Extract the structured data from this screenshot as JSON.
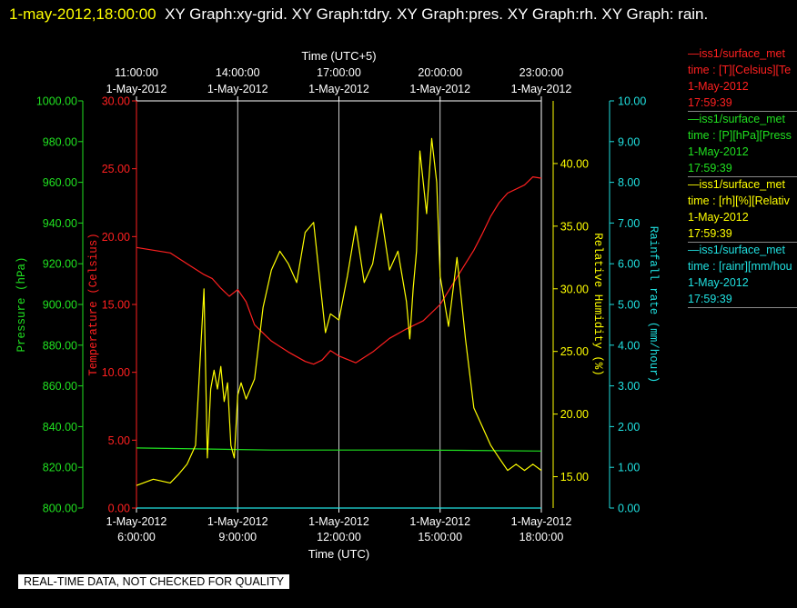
{
  "title": {
    "timestamp": "1-may-2012,18:00:00",
    "text": "XY Graph:xy-grid.  XY Graph:tdry.  XY Graph:pres.  XY Graph:rh.  XY Graph: rain."
  },
  "footer": "REAL-TIME DATA, NOT CHECKED FOR QUALITY",
  "legend": [
    {
      "line1": "—iss1/surface_met",
      "line2": "time : [T][Celsius][Te",
      "line3": "1-May-2012",
      "line4": "17:59:39",
      "color": "#ff2020"
    },
    {
      "line1": "—iss1/surface_met",
      "line2": "time : [P][hPa][Press",
      "line3": "1-May-2012",
      "line4": "17:59:39",
      "color": "#20e020"
    },
    {
      "line1": "—iss1/surface_met",
      "line2": "time : [rh][%][Relativ",
      "line3": "1-May-2012",
      "line4": "17:59:39",
      "color": "#ffff00"
    },
    {
      "line1": "—iss1/surface_met",
      "line2": "time : [rainr][mm/hou",
      "line3": "1-May-2012",
      "line4": "17:59:39",
      "color": "#20e0e0"
    }
  ],
  "chart_data": {
    "type": "line",
    "x_bottom_label": "Time (UTC)",
    "x_top_label": "Time (UTC+5)",
    "x_range_hours": [
      6,
      18
    ],
    "bottom_ticks": [
      {
        "date": "1-May-2012",
        "time": "6:00:00"
      },
      {
        "date": "1-May-2012",
        "time": "9:00:00"
      },
      {
        "date": "1-May-2012",
        "time": "12:00:00"
      },
      {
        "date": "1-May-2012",
        "time": "15:00:00"
      },
      {
        "date": "1-May-2012",
        "time": "18:00:00"
      }
    ],
    "top_ticks": [
      {
        "time": "11:00:00",
        "date": "1-May-2012"
      },
      {
        "time": "14:00:00",
        "date": "1-May-2012"
      },
      {
        "time": "17:00:00",
        "date": "1-May-2012"
      },
      {
        "time": "20:00:00",
        "date": "1-May-2012"
      },
      {
        "time": "23:00:00",
        "date": "1-May-2012"
      }
    ],
    "grid": true,
    "axes": {
      "pressure": {
        "label": "Pressure (hPa)",
        "range": [
          800,
          1000
        ],
        "ticks": [
          "1000.00",
          "980.00",
          "960.00",
          "940.00",
          "920.00",
          "900.00",
          "880.00",
          "860.00",
          "840.00",
          "820.00",
          "800.00"
        ],
        "color": "#20e020"
      },
      "temperature": {
        "label": "Temperature (Celsius)",
        "range": [
          0,
          30
        ],
        "ticks": [
          "30.00",
          "25.00",
          "20.00",
          "15.00",
          "10.00",
          "5.00",
          "0.00"
        ],
        "color": "#ff2020"
      },
      "humidity": {
        "label": "Relative Humidity (%)",
        "range": [
          12.5,
          45
        ],
        "ticks": [
          "40.00",
          "35.00",
          "30.00",
          "25.00",
          "20.00",
          "15.00"
        ],
        "color": "#ffff00"
      },
      "rain": {
        "label": "Rainfall rate (mm/hour)",
        "range": [
          0,
          10
        ],
        "ticks": [
          "10.00",
          "9.00",
          "8.00",
          "7.00",
          "6.00",
          "5.00",
          "4.00",
          "3.00",
          "2.00",
          "1.00",
          "0.00"
        ],
        "color": "#20e0e0"
      }
    },
    "series": [
      {
        "axis": "temperature",
        "color": "#ff2020",
        "x": [
          6.0,
          6.5,
          7.0,
          7.5,
          8.0,
          8.25,
          8.5,
          8.75,
          9.0,
          9.25,
          9.5,
          10.0,
          10.5,
          11.0,
          11.25,
          11.5,
          11.75,
          12.0,
          12.5,
          13.0,
          13.5,
          14.0,
          14.5,
          15.0,
          15.5,
          16.0,
          16.25,
          16.5,
          16.75,
          17.0,
          17.5,
          17.75,
          18.0
        ],
        "y": [
          19.2,
          19.0,
          18.8,
          18.0,
          17.2,
          16.9,
          16.2,
          15.6,
          16.1,
          15.2,
          13.5,
          12.3,
          11.5,
          10.8,
          10.6,
          10.9,
          11.6,
          11.2,
          10.7,
          11.5,
          12.5,
          13.2,
          13.8,
          15.0,
          17.0,
          19.0,
          20.2,
          21.5,
          22.5,
          23.2,
          23.8,
          24.4,
          24.3
        ]
      },
      {
        "axis": "pressure",
        "color": "#20e020",
        "x": [
          6.0,
          8.0,
          10.0,
          12.0,
          14.0,
          16.0,
          18.0
        ],
        "y": [
          829.5,
          829.0,
          828.5,
          828.5,
          828.5,
          828.3,
          828.0
        ]
      },
      {
        "axis": "humidity",
        "color": "#ffff00",
        "x": [
          6.0,
          6.5,
          7.0,
          7.25,
          7.5,
          7.75,
          8.0,
          8.1,
          8.2,
          8.3,
          8.4,
          8.5,
          8.6,
          8.7,
          8.8,
          8.9,
          9.0,
          9.1,
          9.25,
          9.5,
          9.75,
          10.0,
          10.25,
          10.5,
          10.75,
          11.0,
          11.25,
          11.5,
          11.6,
          11.75,
          12.0,
          12.25,
          12.5,
          12.75,
          13.0,
          13.25,
          13.5,
          13.75,
          14.0,
          14.1,
          14.2,
          14.3,
          14.4,
          14.5,
          14.6,
          14.75,
          14.9,
          15.0,
          15.25,
          15.5,
          15.75,
          16.0,
          16.25,
          16.5,
          16.75,
          17.0,
          17.25,
          17.5,
          17.75,
          18.0
        ],
        "y": [
          14.3,
          14.8,
          14.5,
          15.2,
          16.0,
          17.5,
          30.0,
          16.5,
          22.0,
          23.5,
          22.0,
          23.8,
          21.0,
          22.5,
          17.5,
          16.5,
          21.5,
          22.5,
          21.2,
          22.8,
          28.5,
          31.5,
          33.0,
          32.0,
          30.5,
          34.5,
          35.3,
          29.0,
          26.5,
          28.0,
          27.5,
          31.0,
          35.0,
          30.5,
          32.0,
          36.0,
          31.5,
          33.0,
          29.0,
          26.0,
          30.0,
          33.0,
          41.0,
          38.5,
          36.0,
          42.0,
          38.5,
          31.0,
          27.0,
          32.5,
          26.0,
          20.5,
          19.0,
          17.5,
          16.5,
          15.5,
          16.0,
          15.5,
          16.0,
          15.5
        ]
      },
      {
        "axis": "rain",
        "color": "#20e0e0",
        "x": [
          6.0,
          18.0
        ],
        "y": [
          0.0,
          0.0
        ]
      }
    ]
  }
}
